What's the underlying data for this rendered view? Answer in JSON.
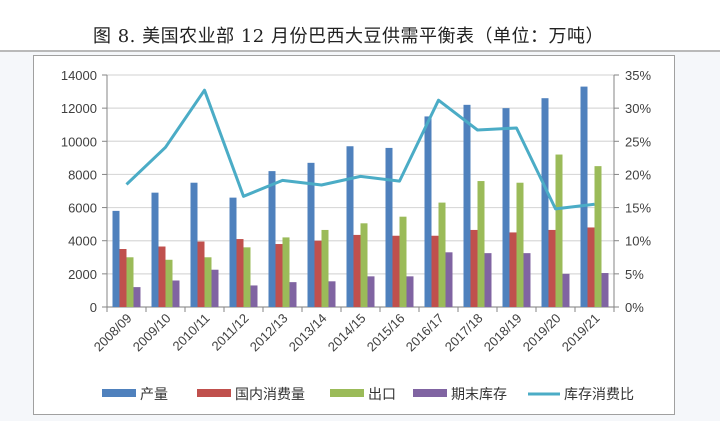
{
  "title": "图 8.  美国农业部 12 月份巴西大豆供需平衡表（单位：万吨）",
  "colors": {
    "production": "#4f81bd",
    "domestic_consumption": "#c0504d",
    "exports": "#9bbb59",
    "ending_stocks": "#8064a2",
    "stock_to_use": "#4bacc6",
    "grid": "#d9d9d9",
    "axis_text": "#404040"
  },
  "legend": {
    "production": "产量",
    "domestic_consumption": "国内消费量",
    "exports": "出口",
    "ending_stocks": "期末库存",
    "stock_to_use": "库存消费比"
  },
  "chart_data": {
    "type": "bar",
    "title": "美国农业部12月份巴西大豆供需平衡表（单位：万吨）",
    "xlabel": "",
    "ylabel": "万吨",
    "y2label": "库存消费比",
    "categories": [
      "2008/09",
      "2009/10",
      "2010/11",
      "2011/12",
      "2012/13",
      "2013/14",
      "2014/15",
      "2015/16",
      "2016/17",
      "2017/18",
      "2018/19",
      "2019/20",
      "2019/21"
    ],
    "series": [
      {
        "name": "产量",
        "type": "bar",
        "axis": "left",
        "values": [
          5800,
          6900,
          7500,
          6600,
          8200,
          8700,
          9700,
          9600,
          11500,
          12200,
          12000,
          12600,
          13300
        ]
      },
      {
        "name": "国内消费量",
        "type": "bar",
        "axis": "left",
        "values": [
          3500,
          3650,
          3950,
          4100,
          3800,
          4000,
          4350,
          4300,
          4300,
          4650,
          4500,
          4650,
          4800
        ]
      },
      {
        "name": "出口",
        "type": "bar",
        "axis": "left",
        "values": [
          3000,
          2850,
          3000,
          3600,
          4200,
          4650,
          5050,
          5450,
          6300,
          7600,
          7500,
          9200,
          8500
        ]
      },
      {
        "name": "期末库存",
        "type": "bar",
        "axis": "left",
        "values": [
          1200,
          1600,
          2250,
          1300,
          1500,
          1550,
          1850,
          1850,
          3300,
          3250,
          3250,
          2000,
          2050
        ]
      },
      {
        "name": "库存消费比",
        "type": "line",
        "axis": "right",
        "values": [
          18.5,
          24.1,
          32.7,
          16.7,
          19.1,
          18.4,
          19.7,
          19.0,
          31.2,
          26.7,
          27.0,
          14.8,
          15.5
        ]
      }
    ],
    "ylim": [
      0,
      14000
    ],
    "yticks": [
      "0",
      "2000",
      "4000",
      "6000",
      "8000",
      "10000",
      "12000",
      "14000"
    ],
    "y2lim": [
      0,
      35
    ],
    "y2ticks": [
      "0%",
      "5%",
      "10%",
      "15%",
      "20%",
      "25%",
      "30%",
      "35%"
    ],
    "grid": true,
    "legend_position": "bottom"
  }
}
